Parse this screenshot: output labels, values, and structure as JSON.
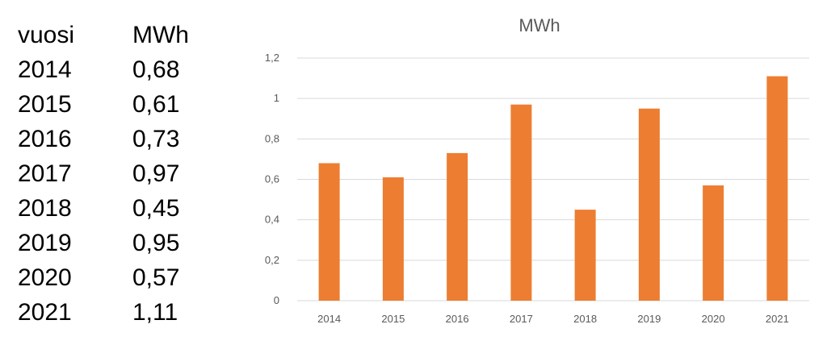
{
  "table": {
    "headers": [
      "vuosi",
      "MWh"
    ],
    "rows": [
      [
        "2014",
        "0,68"
      ],
      [
        "2015",
        "0,61"
      ],
      [
        "2016",
        "0,73"
      ],
      [
        "2017",
        "0,97"
      ],
      [
        "2018",
        "0,45"
      ],
      [
        "2019",
        "0,95"
      ],
      [
        "2020",
        "0,57"
      ],
      [
        "2021",
        "1,11"
      ]
    ]
  },
  "chart_data": {
    "type": "bar",
    "title": "MWh",
    "categories": [
      "2014",
      "2015",
      "2016",
      "2017",
      "2018",
      "2019",
      "2020",
      "2021"
    ],
    "values": [
      0.68,
      0.61,
      0.73,
      0.97,
      0.45,
      0.95,
      0.57,
      1.11
    ],
    "ylim": [
      0,
      1.2
    ],
    "yticks": [
      0,
      0.2,
      0.4,
      0.6,
      0.8,
      1,
      1.2
    ],
    "ytick_labels": [
      "0",
      "0,2",
      "0,4",
      "0,6",
      "0,8",
      "1",
      "1,2"
    ],
    "xlabel": "",
    "ylabel": "",
    "grid": true,
    "legend": "none",
    "bar_color": "#ED7D31",
    "grid_color": "#D9D9D9"
  }
}
